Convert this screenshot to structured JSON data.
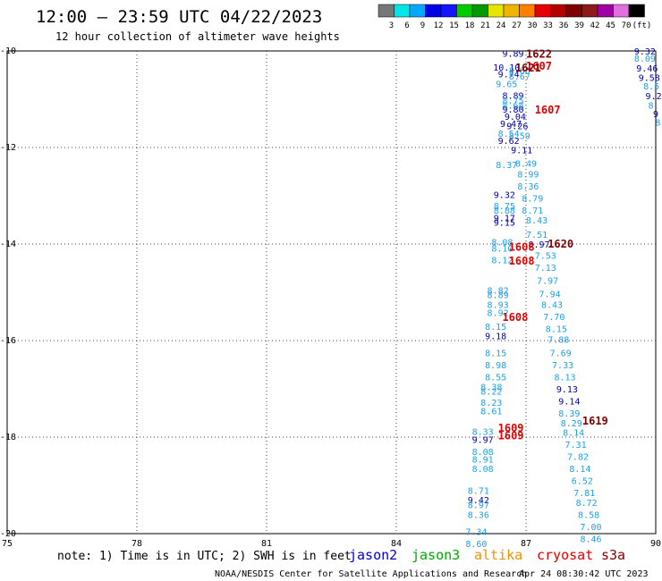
{
  "header": {
    "title": "12:00 – 23:59 UTC 04/22/2023",
    "subtitle": "12 hour collection of altimeter wave heights"
  },
  "color_scale": {
    "swatches": [
      "#777777",
      "#00e5e5",
      "#00a8ff",
      "#0000e6",
      "#1414ff",
      "#00cc00",
      "#009900",
      "#e5e500",
      "#f0b400",
      "#ff8000",
      "#e60000",
      "#b40000",
      "#800000",
      "#8c1a1a",
      "#a000a0",
      "#e070e0",
      "#000000"
    ],
    "labels": [
      "3",
      "6",
      "9",
      "12",
      "15",
      "18",
      "21",
      "24",
      "27",
      "30",
      "33",
      "36",
      "39",
      "42",
      "45",
      "70",
      "(ft)"
    ]
  },
  "note": "note: 1) Time is in UTC; 2) SWH is in feet",
  "satellites": [
    {
      "name": "jason2",
      "color": "#0000cc"
    },
    {
      "name": "jason3",
      "color": "#00aa00"
    },
    {
      "name": "altika",
      "color": "#f09000"
    },
    {
      "name": "cryosat",
      "color": "#e00000"
    },
    {
      "name": "s3a",
      "color": "#800000"
    }
  ],
  "footer": {
    "agency": "NOAA/NESDIS Center for Satellite Applications and Research",
    "timestamp": "Apr 24 08:30:42 UTC 2023"
  },
  "chart_data": {
    "type": "scatter",
    "xlim": [
      75,
      90
    ],
    "ylim": [
      -20,
      -10
    ],
    "xticks": [
      "75",
      "78",
      "81",
      "84",
      "87",
      "90"
    ],
    "yticks": [
      "-10",
      "-12",
      "-14",
      "-16",
      "-18",
      "-20"
    ],
    "grid": true,
    "colors": {
      "dark": "#0000aa",
      "light": "#1ea0e6",
      "pass_red": "#e00000",
      "pass_dark": "#800000"
    },
    "points": [
      {
        "x": 86.7,
        "y": -10.05,
        "v": "9.89",
        "c": "dark"
      },
      {
        "x": 86.55,
        "y": -10.33,
        "v": "10.10",
        "c": "dark"
      },
      {
        "x": 86.6,
        "y": -10.47,
        "v": "9.74",
        "c": "dark"
      },
      {
        "x": 86.85,
        "y": -10.4,
        "v": "8.86",
        "c": "light"
      },
      {
        "x": 86.85,
        "y": -10.52,
        "v": "8.67",
        "c": "light"
      },
      {
        "x": 86.55,
        "y": -10.68,
        "v": "9.65",
        "c": "light"
      },
      {
        "x": 86.7,
        "y": -10.92,
        "v": "8.89",
        "c": "dark"
      },
      {
        "x": 86.7,
        "y": -11.02,
        "v": "8.75",
        "c": "light"
      },
      {
        "x": 86.7,
        "y": -11.12,
        "v": "8.68",
        "c": "light"
      },
      {
        "x": 86.7,
        "y": -11.2,
        "v": "9.80",
        "c": "dark"
      },
      {
        "x": 86.75,
        "y": -11.35,
        "v": "9.04",
        "c": "dark"
      },
      {
        "x": 86.65,
        "y": -11.5,
        "v": "9.47",
        "c": "dark"
      },
      {
        "x": 86.8,
        "y": -11.55,
        "v": "9.26",
        "c": "dark"
      },
      {
        "x": 86.6,
        "y": -11.7,
        "v": "8.54",
        "c": "light"
      },
      {
        "x": 86.85,
        "y": -11.75,
        "v": "8.59",
        "c": "light"
      },
      {
        "x": 86.6,
        "y": -11.85,
        "v": "9.62",
        "c": "dark"
      },
      {
        "x": 86.9,
        "y": -12.05,
        "v": "9.11",
        "c": "dark"
      },
      {
        "x": 86.55,
        "y": -12.35,
        "v": "8.37",
        "c": "light"
      },
      {
        "x": 87.0,
        "y": -12.32,
        "v": "8.49",
        "c": "light"
      },
      {
        "x": 87.05,
        "y": -12.55,
        "v": "8.99",
        "c": "light"
      },
      {
        "x": 87.05,
        "y": -12.8,
        "v": "8.36",
        "c": "light"
      },
      {
        "x": 86.5,
        "y": -12.97,
        "v": "9.32",
        "c": "dark"
      },
      {
        "x": 87.15,
        "y": -13.05,
        "v": "8.79",
        "c": "light"
      },
      {
        "x": 86.5,
        "y": -13.2,
        "v": "8.75",
        "c": "light"
      },
      {
        "x": 86.5,
        "y": -13.3,
        "v": "8.88",
        "c": "light"
      },
      {
        "x": 87.15,
        "y": -13.3,
        "v": "8.71",
        "c": "light"
      },
      {
        "x": 86.5,
        "y": -13.45,
        "v": "9.17",
        "c": "dark"
      },
      {
        "x": 86.5,
        "y": -13.55,
        "v": "9.15",
        "c": "dark"
      },
      {
        "x": 87.25,
        "y": -13.5,
        "v": "8.43",
        "c": "light"
      },
      {
        "x": 87.25,
        "y": -13.8,
        "v": "7.51",
        "c": "light"
      },
      {
        "x": 86.45,
        "y": -13.95,
        "v": "8.08",
        "c": "light"
      },
      {
        "x": 87.3,
        "y": -14.0,
        "v": "8.97",
        "c": "dark"
      },
      {
        "x": 86.45,
        "y": -14.08,
        "v": "8.10",
        "c": "light"
      },
      {
        "x": 87.45,
        "y": -14.23,
        "v": "7.53",
        "c": "light"
      },
      {
        "x": 86.45,
        "y": -14.32,
        "v": "8.12",
        "c": "light"
      },
      {
        "x": 87.45,
        "y": -14.48,
        "v": "7.13",
        "c": "light"
      },
      {
        "x": 87.5,
        "y": -14.75,
        "v": "7.97",
        "c": "light"
      },
      {
        "x": 86.35,
        "y": -14.95,
        "v": "8.82",
        "c": "light"
      },
      {
        "x": 86.35,
        "y": -15.05,
        "v": "8.89",
        "c": "light"
      },
      {
        "x": 87.55,
        "y": -15.03,
        "v": "7.94",
        "c": "light"
      },
      {
        "x": 86.35,
        "y": -15.25,
        "v": "8.93",
        "c": "light"
      },
      {
        "x": 87.6,
        "y": -15.25,
        "v": "8.43",
        "c": "light"
      },
      {
        "x": 86.35,
        "y": -15.42,
        "v": "8.92",
        "c": "light"
      },
      {
        "x": 87.65,
        "y": -15.5,
        "v": "7.70",
        "c": "light"
      },
      {
        "x": 86.3,
        "y": -15.7,
        "v": "8.15",
        "c": "light"
      },
      {
        "x": 87.7,
        "y": -15.75,
        "v": "8.15",
        "c": "light"
      },
      {
        "x": 86.3,
        "y": -15.9,
        "v": "9.18",
        "c": "dark"
      },
      {
        "x": 87.75,
        "y": -15.97,
        "v": "7.88",
        "c": "light"
      },
      {
        "x": 86.3,
        "y": -16.25,
        "v": "8.15",
        "c": "light"
      },
      {
        "x": 87.8,
        "y": -16.25,
        "v": "7.69",
        "c": "light"
      },
      {
        "x": 86.3,
        "y": -16.5,
        "v": "8.98",
        "c": "light"
      },
      {
        "x": 87.85,
        "y": -16.5,
        "v": "7.33",
        "c": "light"
      },
      {
        "x": 86.3,
        "y": -16.75,
        "v": "8.55",
        "c": "light"
      },
      {
        "x": 87.9,
        "y": -16.75,
        "v": "8.13",
        "c": "light"
      },
      {
        "x": 86.2,
        "y": -16.95,
        "v": "8.38",
        "c": "light"
      },
      {
        "x": 86.2,
        "y": -17.05,
        "v": "8.22",
        "c": "light"
      },
      {
        "x": 87.95,
        "y": -17.0,
        "v": "9.13",
        "c": "dark"
      },
      {
        "x": 86.2,
        "y": -17.28,
        "v": "8.23",
        "c": "light"
      },
      {
        "x": 88.0,
        "y": -17.25,
        "v": "9.14",
        "c": "dark"
      },
      {
        "x": 86.2,
        "y": -17.45,
        "v": "8.61",
        "c": "light"
      },
      {
        "x": 88.0,
        "y": -17.5,
        "v": "8.39",
        "c": "light"
      },
      {
        "x": 88.05,
        "y": -17.7,
        "v": "8.29",
        "c": "light"
      },
      {
        "x": 86.0,
        "y": -17.88,
        "v": "8.33",
        "c": "light"
      },
      {
        "x": 88.1,
        "y": -17.9,
        "v": "8.14",
        "c": "light"
      },
      {
        "x": 86.0,
        "y": -18.05,
        "v": "9.97",
        "c": "dark"
      },
      {
        "x": 88.15,
        "y": -18.15,
        "v": "7.31",
        "c": "light"
      },
      {
        "x": 86.0,
        "y": -18.3,
        "v": "8.08",
        "c": "light"
      },
      {
        "x": 88.2,
        "y": -18.4,
        "v": "7.82",
        "c": "light"
      },
      {
        "x": 86.0,
        "y": -18.45,
        "v": "8.91",
        "c": "light"
      },
      {
        "x": 86.0,
        "y": -18.65,
        "v": "8.08",
        "c": "light"
      },
      {
        "x": 88.25,
        "y": -18.65,
        "v": "8.14",
        "c": "light"
      },
      {
        "x": 88.3,
        "y": -18.9,
        "v": "6.52",
        "c": "light"
      },
      {
        "x": 85.9,
        "y": -19.1,
        "v": "8.71",
        "c": "light"
      },
      {
        "x": 88.35,
        "y": -19.15,
        "v": "7.81",
        "c": "light"
      },
      {
        "x": 85.9,
        "y": -19.3,
        "v": "9.42",
        "c": "dark"
      },
      {
        "x": 85.9,
        "y": -19.4,
        "v": "8.97",
        "c": "light"
      },
      {
        "x": 88.4,
        "y": -19.35,
        "v": "8.72",
        "c": "light"
      },
      {
        "x": 85.9,
        "y": -19.6,
        "v": "8.36",
        "c": "light"
      },
      {
        "x": 88.45,
        "y": -19.6,
        "v": "8.58",
        "c": "light"
      },
      {
        "x": 88.5,
        "y": -19.85,
        "v": "7.00",
        "c": "light"
      },
      {
        "x": 85.85,
        "y": -19.95,
        "v": "7.34",
        "c": "light"
      },
      {
        "x": 88.5,
        "y": -20.1,
        "v": "8.46",
        "c": "light"
      },
      {
        "x": 85.85,
        "y": -20.2,
        "v": "8.60",
        "c": "light"
      },
      {
        "x": 89.75,
        "y": -10.0,
        "v": "9.32",
        "c": "dark"
      },
      {
        "x": 89.75,
        "y": -10.15,
        "v": "8.09",
        "c": "light"
      },
      {
        "x": 89.8,
        "y": -10.35,
        "v": "9.46",
        "c": "dark"
      },
      {
        "x": 89.85,
        "y": -10.55,
        "v": "9.58",
        "c": "dark"
      },
      {
        "x": 89.9,
        "y": -10.72,
        "v": "8.5",
        "c": "light"
      },
      {
        "x": 89.95,
        "y": -10.93,
        "v": "9.2",
        "c": "dark"
      },
      {
        "x": 89.95,
        "y": -11.12,
        "v": "8.",
        "c": "light"
      },
      {
        "x": 90.0,
        "y": -11.3,
        "v": "9",
        "c": "dark"
      },
      {
        "x": 90.05,
        "y": -11.47,
        "v": "8",
        "c": "light"
      }
    ],
    "passes": [
      {
        "x": 87.3,
        "y": -10.05,
        "t": "1622",
        "c": "pass_dark"
      },
      {
        "x": 87.3,
        "y": -10.3,
        "t": "1607",
        "c": "pass_red"
      },
      {
        "x": 87.05,
        "y": -10.33,
        "t": "1621",
        "c": "pass_dark"
      },
      {
        "x": 87.5,
        "y": -11.2,
        "t": "1607",
        "c": "pass_red"
      },
      {
        "x": 87.8,
        "y": -13.98,
        "t": "1620",
        "c": "pass_dark"
      },
      {
        "x": 86.9,
        "y": -14.05,
        "t": "1608",
        "c": "pass_red"
      },
      {
        "x": 86.9,
        "y": -14.33,
        "t": "1608",
        "c": "pass_red"
      },
      {
        "x": 86.75,
        "y": -15.5,
        "t": "1608",
        "c": "pass_red"
      },
      {
        "x": 88.6,
        "y": -17.65,
        "t": "1619",
        "c": "pass_dark"
      },
      {
        "x": 86.65,
        "y": -17.8,
        "t": "1609",
        "c": "pass_red"
      },
      {
        "x": 86.65,
        "y": -17.95,
        "t": "1609",
        "c": "pass_red"
      }
    ]
  }
}
